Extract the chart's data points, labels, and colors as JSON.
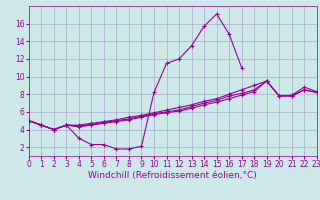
{
  "xlabel": "Windchill (Refroidissement éolien,°C)",
  "bg_color": "#cce8e8",
  "grid_color": "#aaaacc",
  "line_color": "#990099",
  "spike_x": [
    0,
    1,
    2,
    3,
    4,
    5,
    6,
    7,
    8,
    9,
    10,
    11,
    12,
    13,
    14,
    15,
    16,
    17
  ],
  "spike_y": [
    5.0,
    4.5,
    4.0,
    4.5,
    3.0,
    2.3,
    2.3,
    1.8,
    1.8,
    2.1,
    8.2,
    11.5,
    12.0,
    13.5,
    15.7,
    17.1,
    14.8,
    11.0
  ],
  "line2_x": [
    0,
    1,
    2,
    3,
    4,
    5,
    6,
    7,
    8,
    9,
    10,
    11,
    12,
    13,
    14,
    15,
    16,
    17,
    18,
    19,
    20,
    21,
    22,
    23
  ],
  "line2_y": [
    5.0,
    4.5,
    4.0,
    4.5,
    4.5,
    4.7,
    4.9,
    5.1,
    5.4,
    5.6,
    5.9,
    6.2,
    6.5,
    6.8,
    7.2,
    7.5,
    8.0,
    8.5,
    9.0,
    9.5,
    7.8,
    7.9,
    8.8,
    8.3
  ],
  "line3_x": [
    0,
    1,
    2,
    3,
    4,
    5,
    6,
    7,
    8,
    9,
    10,
    11,
    12,
    13,
    14,
    15,
    16,
    17,
    18,
    19,
    20,
    21,
    22,
    23
  ],
  "line3_y": [
    5.0,
    4.5,
    4.0,
    4.5,
    4.4,
    4.6,
    4.8,
    5.0,
    5.2,
    5.5,
    5.8,
    6.0,
    6.2,
    6.6,
    7.0,
    7.3,
    7.8,
    8.1,
    8.5,
    9.5,
    7.8,
    7.8,
    8.5,
    8.2
  ],
  "line4_x": [
    0,
    1,
    2,
    3,
    4,
    5,
    6,
    7,
    8,
    9,
    10,
    11,
    12,
    13,
    14,
    15,
    16,
    17,
    18,
    19,
    20,
    21,
    22,
    23
  ],
  "line4_y": [
    5.0,
    4.5,
    4.0,
    4.5,
    4.3,
    4.5,
    4.7,
    4.9,
    5.1,
    5.4,
    5.7,
    5.9,
    6.1,
    6.4,
    6.8,
    7.1,
    7.5,
    7.9,
    8.3,
    9.5,
    7.8,
    7.8,
    8.5,
    8.2
  ],
  "xlim": [
    0,
    23
  ],
  "ylim": [
    1,
    18
  ],
  "xticks": [
    0,
    1,
    2,
    3,
    4,
    5,
    6,
    7,
    8,
    9,
    10,
    11,
    12,
    13,
    14,
    15,
    16,
    17,
    18,
    19,
    20,
    21,
    22,
    23
  ],
  "yticks": [
    2,
    4,
    6,
    8,
    10,
    12,
    14,
    16
  ],
  "tick_fontsize": 5.5,
  "xlabel_fontsize": 6.5
}
